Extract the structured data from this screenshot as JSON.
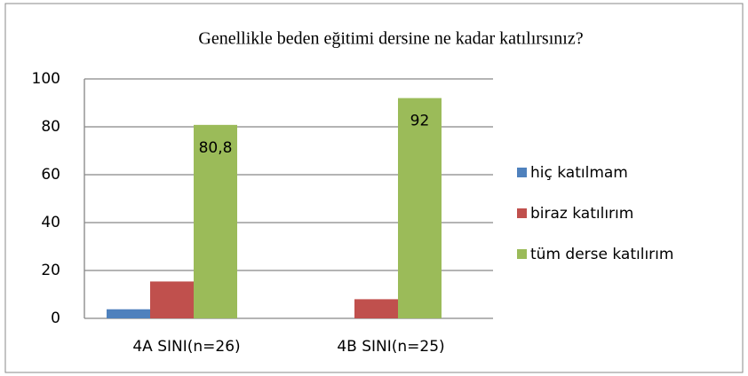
{
  "chart_data": {
    "type": "bar",
    "title": "Genellikle beden eğitimi dersine ne kadar katılırsınız?",
    "categories": [
      "4A SINI(n=26)",
      "4B SINI(n=25)"
    ],
    "series": [
      {
        "name": "hiç katılmam",
        "color": "#4f81bd",
        "values": [
          3.8,
          0
        ]
      },
      {
        "name": "biraz katılırım",
        "color": "#c0504d",
        "values": [
          15.4,
          8
        ]
      },
      {
        "name": "tüm derse katılırım",
        "color": "#9bbb59",
        "values": [
          80.8,
          92
        ],
        "value_labels": [
          "80,8",
          "92"
        ]
      }
    ],
    "ylim": [
      0,
      100
    ],
    "yticks": [
      0,
      20,
      40,
      60,
      80,
      100
    ],
    "grid": true,
    "legend": "right"
  }
}
